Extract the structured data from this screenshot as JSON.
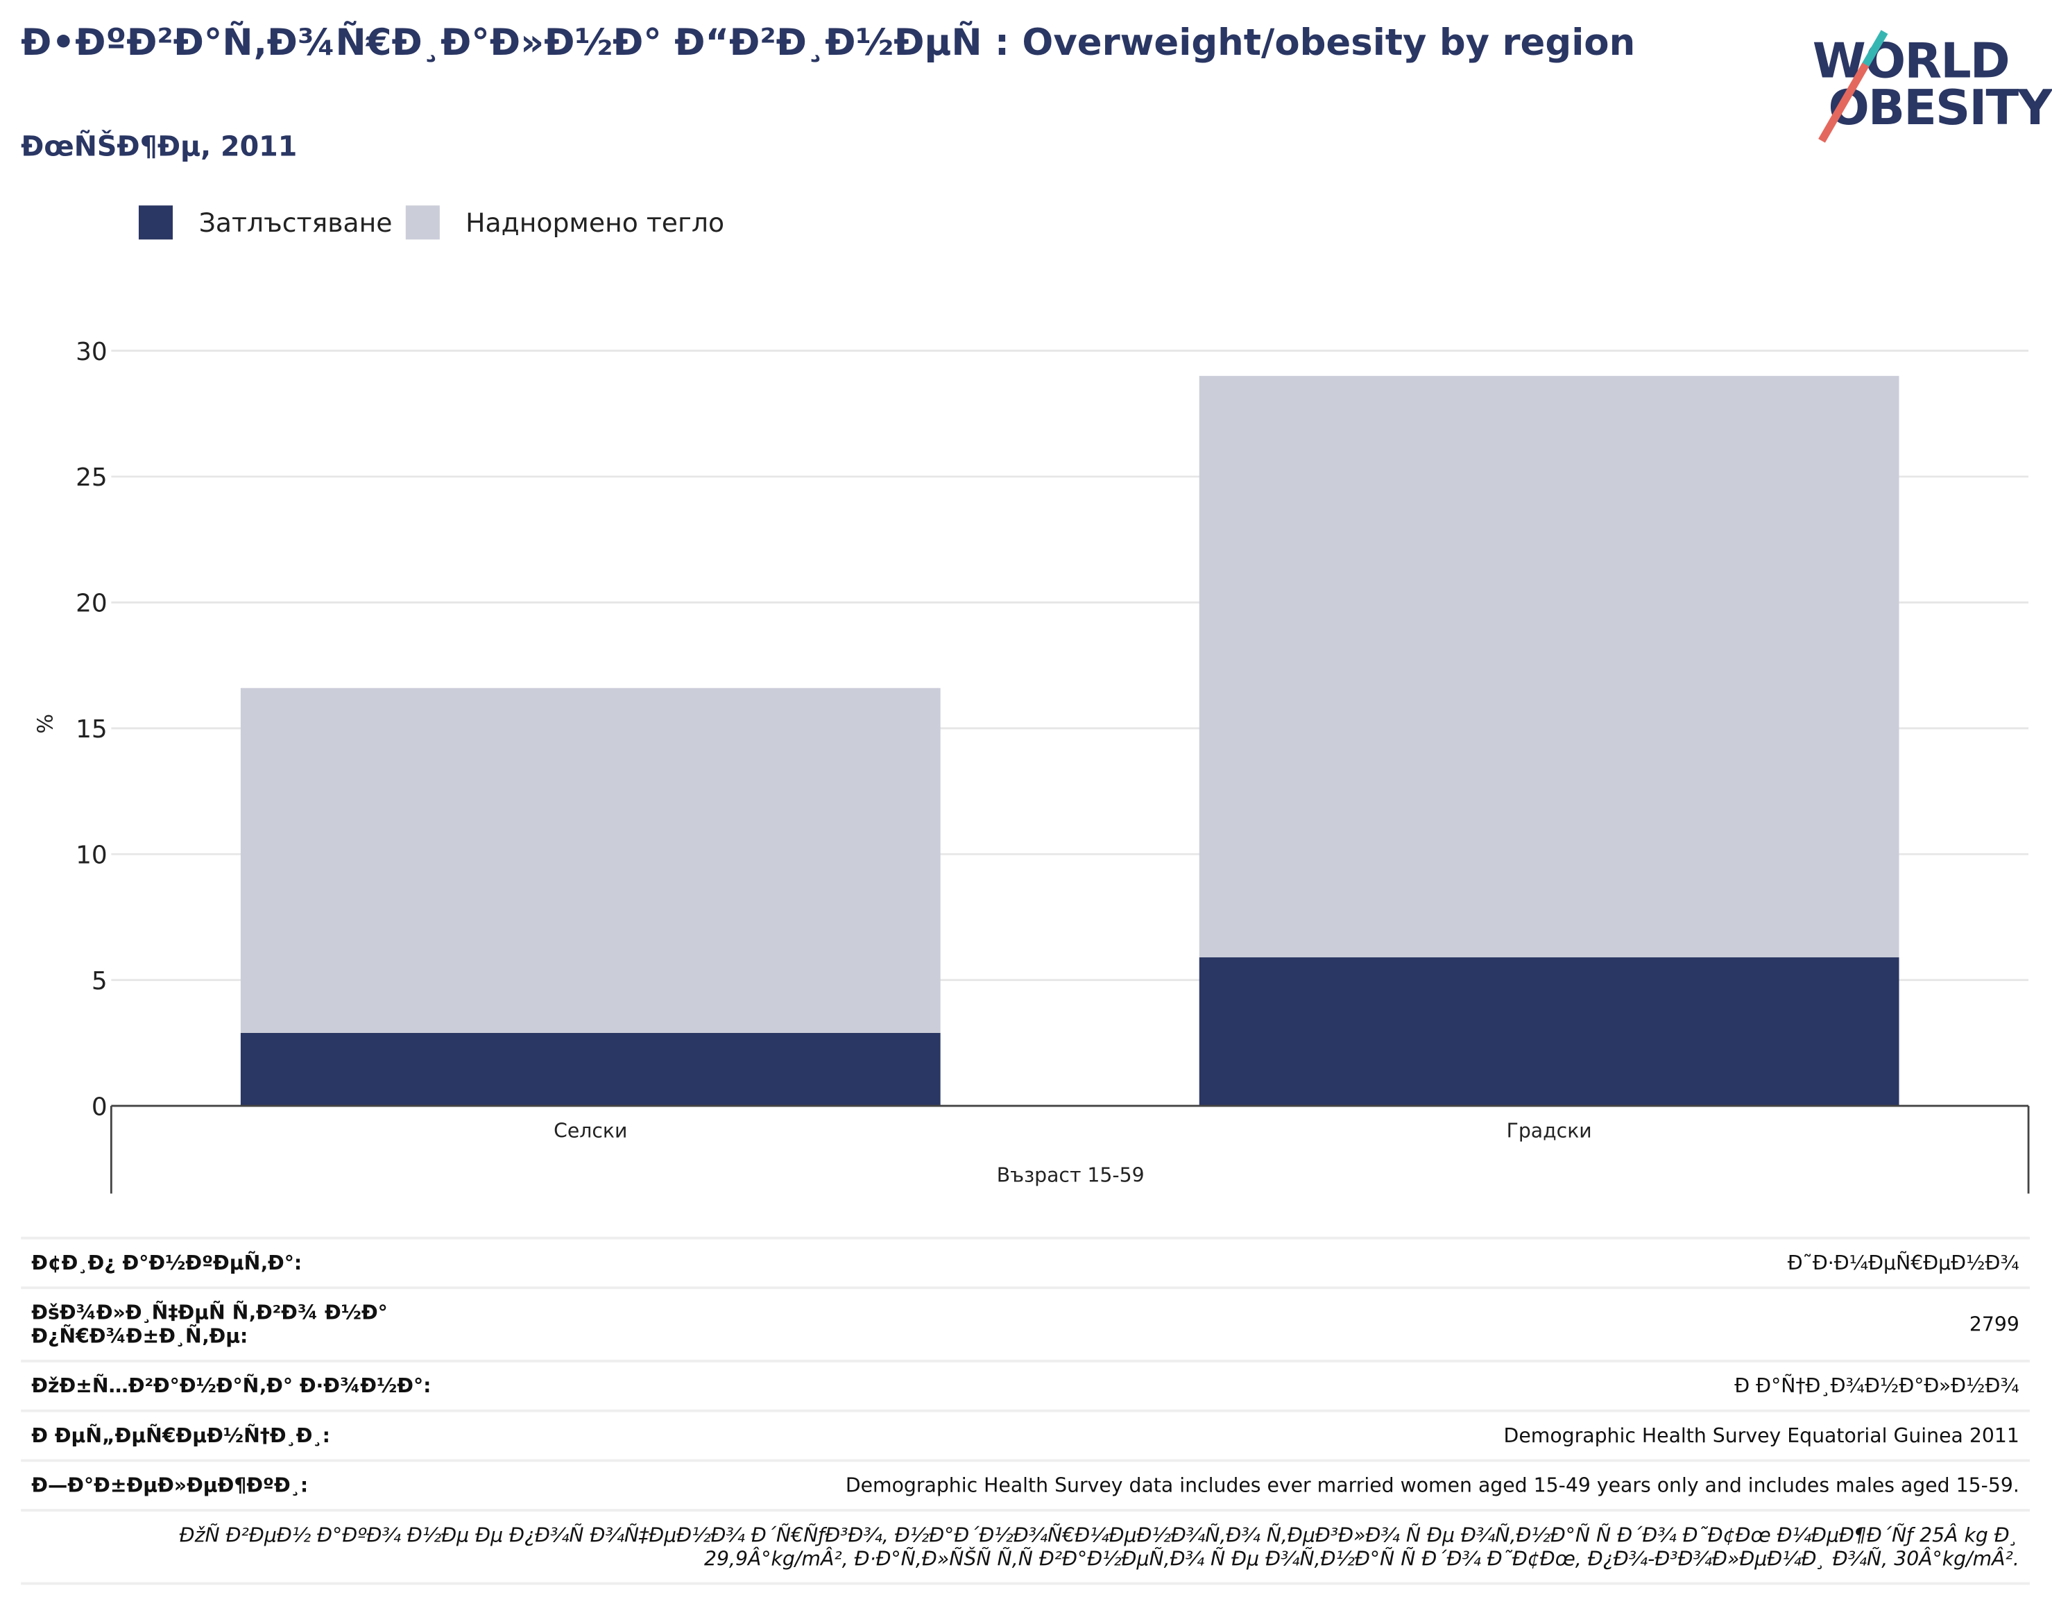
{
  "header": {
    "title": "Ð•ÐºÐ²Ð°Ñ‚Ð¾Ñ€Ð¸Ð°Ð»Ð½Ð° Ð“Ð²Ð¸Ð½ÐµÑ : Overweight/obesity by region",
    "subtitle": "ÐœÑŠÐ¶Ðµ, 2011",
    "logo_line1": "WORLD",
    "logo_line2": "OBESITY"
  },
  "colors": {
    "obesity": "#2a3663",
    "overweight": "#cbcdd9",
    "brand": "#2a3663",
    "grid": "#e6e6e6"
  },
  "chart_data": {
    "type": "bar",
    "stacked": true,
    "categories": [
      "Селски",
      "Градски"
    ],
    "xlabel": "Възраст 15-59",
    "ylabel": "%",
    "ylim": [
      0,
      30
    ],
    "yticks": [
      0,
      5,
      10,
      15,
      20,
      25,
      30
    ],
    "grid": true,
    "legend_position": "top-left",
    "series": [
      {
        "name": "Затлъстяване",
        "values": [
          2.9,
          5.9
        ]
      },
      {
        "name": "Наднормено тегло",
        "values": [
          13.7,
          23.1
        ]
      }
    ]
  },
  "info": [
    {
      "key": "Ð¢Ð¸Ð¿ Ð°Ð½ÐºÐµÑ‚Ð°:",
      "value": "Ð˜Ð·Ð¼ÐµÑ€ÐµÐ½Ð¾"
    },
    {
      "key": "ÐšÐ¾Ð»Ð¸Ñ‡ÐµÑ Ñ‚Ð²Ð¾ Ð½Ð° Ð¿Ñ€Ð¾Ð±Ð¸Ñ‚Ðµ:",
      "value": "2799"
    },
    {
      "key": "ÐžÐ±Ñ…Ð²Ð°Ð½Ð°Ñ‚Ð° Ð·Ð¾Ð½Ð°:",
      "value": "Ð Ð°Ñ†Ð¸Ð¾Ð½Ð°Ð»Ð½Ð¾"
    },
    {
      "key": "Ð ÐµÑ„ÐµÑ€ÐµÐ½Ñ†Ð¸Ð¸:",
      "value": "Demographic Health Survey Equatorial Guinea 2011"
    },
    {
      "key": "Ð—Ð°Ð±ÐµÐ»ÐµÐ¶ÐºÐ¸:",
      "value": "Demographic Health Survey data includes ever married women aged 15-49 years only and includes males aged 15-59."
    }
  ],
  "footnote": "ÐžÑ Ð²ÐµÐ½ Ð°ÐºÐ¾ Ð½Ðµ Ðµ Ð¿Ð¾Ñ Ð¾Ñ‡ÐµÐ½Ð¾ Ð´Ñ€ÑƒÐ³Ð¾, Ð½Ð°Ð´Ð½Ð¾Ñ€Ð¼ÐµÐ½Ð¾Ñ‚Ð¾ Ñ‚ÐµÐ³Ð»Ð¾ Ñ Ðµ Ð¾Ñ‚Ð½Ð°Ñ Ñ  Ð´Ð¾ Ð˜Ð¢Ðœ Ð¼ÐµÐ¶Ð´Ñƒ 25Â kg Ð¸ 29,9Â°kg/mÂ², Ð·Ð°Ñ‚Ð»ÑŠÑ Ñ‚Ñ Ð²Ð°Ð½ÐµÑ‚Ð¾ Ñ Ðµ Ð¾Ñ‚Ð½Ð°Ñ Ñ  Ð´Ð¾ Ð˜Ð¢Ðœ, Ð¿Ð¾-Ð³Ð¾Ð»ÐµÐ¼Ð¸ Ð¾Ñ‚ 30Â°kg/mÂ²."
}
